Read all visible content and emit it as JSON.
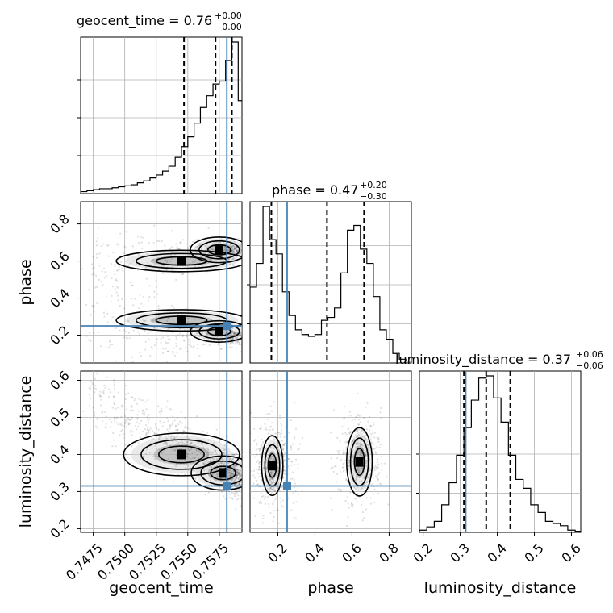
{
  "chart_data": {
    "type": "corner",
    "parameters": [
      "geocent_time",
      "phase",
      "luminosity_distance"
    ],
    "axis_labels": {
      "geocent_time": "geocent_time",
      "phase": "phase",
      "luminosity_distance": "luminosity_distance"
    },
    "titles": [
      {
        "param": "geocent_time",
        "label": "geocent_time = ",
        "median": "0.76",
        "plus": "+0.00",
        "minus": "−0.00"
      },
      {
        "param": "phase",
        "label": "phase = ",
        "median": "0.47",
        "plus": "+0.20",
        "minus": "−0.30"
      },
      {
        "param": "luminosity_distance",
        "label": "luminosity_distance = ",
        "median": "0.37",
        "plus": "+0.06",
        "minus": "−0.06"
      }
    ],
    "ranges": {
      "geocent_time": [
        0.7465,
        0.7593
      ],
      "phase": [
        0.05,
        0.92
      ],
      "luminosity_distance": [
        0.19,
        0.625
      ]
    },
    "ticks": {
      "geocent_time": {
        "values": [
          0.7475,
          0.75,
          0.7525,
          0.755,
          0.7575
        ],
        "labels": [
          "0.7475",
          "0.7500",
          "0.7525",
          "0.7550",
          "0.7575"
        ]
      },
      "phase": {
        "values": [
          0.2,
          0.4,
          0.6,
          0.8
        ],
        "labels": [
          "0.2",
          "0.4",
          "0.6",
          "0.8"
        ]
      },
      "luminosity_distance": {
        "values": [
          0.2,
          0.3,
          0.4,
          0.5,
          0.6
        ],
        "labels": [
          "0.2",
          "0.3",
          "0.4",
          "0.5",
          "0.6"
        ]
      }
    },
    "truths": {
      "geocent_time": 0.7581,
      "phase": 0.25,
      "luminosity_distance": 0.315
    },
    "quantiles": {
      "geocent_time": [
        0.7547,
        0.7572,
        0.7585
      ],
      "phase": [
        0.165,
        0.465,
        0.665
      ],
      "luminosity_distance": [
        0.31,
        0.37,
        0.435
      ]
    },
    "histograms": {
      "geocent_time": {
        "edges": [
          0.7465,
          0.747,
          0.7475,
          0.748,
          0.7485,
          0.749,
          0.7495,
          0.75,
          0.7505,
          0.751,
          0.7515,
          0.752,
          0.7525,
          0.753,
          0.7535,
          0.754,
          0.7545,
          0.755,
          0.7555,
          0.756,
          0.7565,
          0.757,
          0.7575,
          0.758,
          0.7585,
          0.759,
          0.7593
        ],
        "counts": [
          2,
          3,
          4,
          5,
          5,
          6,
          7,
          8,
          9,
          11,
          13,
          16,
          19,
          23,
          28,
          37,
          48,
          58,
          72,
          88,
          100,
          112,
          115,
          136,
          155,
          95
        ]
      },
      "phase": {
        "edges": [
          0.05,
          0.085,
          0.12,
          0.155,
          0.19,
          0.225,
          0.26,
          0.295,
          0.33,
          0.365,
          0.4,
          0.435,
          0.47,
          0.505,
          0.54,
          0.575,
          0.61,
          0.645,
          0.68,
          0.715,
          0.75,
          0.785,
          0.82,
          0.855,
          0.89,
          0.92
        ],
        "counts": [
          80,
          105,
          165,
          130,
          115,
          75,
          50,
          35,
          30,
          28,
          30,
          45,
          48,
          58,
          95,
          140,
          145,
          120,
          105,
          70,
          35,
          25,
          10,
          4,
          2
        ]
      },
      "luminosity_distance": {
        "edges": [
          0.19,
          0.21,
          0.23,
          0.25,
          0.27,
          0.29,
          0.31,
          0.33,
          0.35,
          0.37,
          0.39,
          0.41,
          0.43,
          0.45,
          0.47,
          0.49,
          0.51,
          0.53,
          0.55,
          0.57,
          0.59,
          0.61,
          0.625
        ],
        "counts": [
          2,
          5,
          10,
          25,
          45,
          70,
          95,
          120,
          140,
          142,
          122,
          100,
          70,
          48,
          40,
          25,
          18,
          10,
          8,
          6,
          2,
          1
        ]
      }
    },
    "modes": {
      "geocent_time": [
        0.7583,
        0.7585
      ],
      "phase": [
        0.18,
        0.66
      ],
      "luminosity_distance": [
        0.335,
        0.37
      ]
    },
    "grid": true
  }
}
